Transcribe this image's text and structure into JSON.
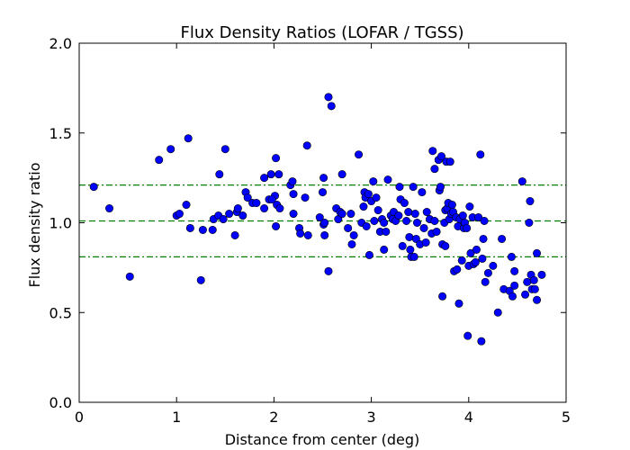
{
  "chart_data": {
    "type": "scatter",
    "title": "Flux Density Ratios (LOFAR / TGSS)",
    "xlabel": "Distance from center (deg)",
    "ylabel": "Flux density ratio",
    "xlim": [
      0,
      5
    ],
    "ylim": [
      0,
      2.0
    ],
    "xticks": [
      0,
      1,
      2,
      3,
      4,
      5
    ],
    "xtick_labels": [
      "0",
      "1",
      "2",
      "3",
      "4",
      "5"
    ],
    "yticks": [
      0,
      0.5,
      1.0,
      1.5,
      2.0
    ],
    "ytick_labels": [
      "0.0",
      "0.5",
      "1.0",
      "1.5",
      "2.0"
    ],
    "grid": false,
    "marker_color": "#0000ff",
    "line_color": "#008000",
    "reference_lines": [
      {
        "y": 1.01,
        "style": "dashed"
      },
      {
        "y": 1.21,
        "style": "dash-dot"
      },
      {
        "y": 0.81,
        "style": "dash-dot"
      }
    ],
    "points": [
      [
        0.15,
        1.2
      ],
      [
        0.31,
        1.08
      ],
      [
        0.52,
        0.7
      ],
      [
        0.82,
        1.35
      ],
      [
        0.94,
        1.41
      ],
      [
        1.0,
        1.04
      ],
      [
        1.03,
        1.05
      ],
      [
        1.1,
        1.1
      ],
      [
        1.12,
        1.47
      ],
      [
        1.14,
        0.97
      ],
      [
        1.25,
        0.68
      ],
      [
        1.27,
        0.96
      ],
      [
        1.37,
        0.96
      ],
      [
        1.38,
        1.02
      ],
      [
        1.43,
        1.04
      ],
      [
        1.44,
        1.27
      ],
      [
        1.48,
        1.02
      ],
      [
        1.5,
        1.41
      ],
      [
        1.54,
        1.05
      ],
      [
        1.6,
        0.93
      ],
      [
        1.62,
        1.06
      ],
      [
        1.63,
        1.08
      ],
      [
        1.68,
        1.04
      ],
      [
        1.71,
        1.17
      ],
      [
        1.73,
        1.14
      ],
      [
        1.78,
        1.11
      ],
      [
        1.82,
        1.11
      ],
      [
        1.9,
        1.25
      ],
      [
        1.9,
        1.08
      ],
      [
        1.95,
        1.13
      ],
      [
        1.97,
        1.27
      ],
      [
        2.02,
        1.36
      ],
      [
        2.02,
        0.98
      ],
      [
        2.05,
        1.27
      ],
      [
        2.01,
        1.15
      ],
      [
        2.03,
        1.1
      ],
      [
        1.98,
        1.13
      ],
      [
        2.06,
        1.08
      ],
      [
        2.17,
        1.21
      ],
      [
        2.19,
        1.23
      ],
      [
        2.2,
        1.16
      ],
      [
        2.2,
        1.05
      ],
      [
        2.26,
        0.97
      ],
      [
        2.27,
        0.94
      ],
      [
        2.32,
        1.14
      ],
      [
        2.34,
        1.43
      ],
      [
        2.35,
        0.93
      ],
      [
        2.47,
        1.03
      ],
      [
        2.5,
        1.17
      ],
      [
        2.51,
        1.25
      ],
      [
        2.51,
        0.99
      ],
      [
        2.52,
        0.93
      ],
      [
        2.52,
        1.0
      ],
      [
        2.56,
        1.7
      ],
      [
        2.56,
        0.73
      ],
      [
        2.59,
        1.65
      ],
      [
        2.64,
        1.08
      ],
      [
        2.66,
        1.02
      ],
      [
        2.68,
        1.06
      ],
      [
        2.7,
        1.27
      ],
      [
        2.7,
        1.05
      ],
      [
        2.76,
        0.97
      ],
      [
        2.79,
        1.05
      ],
      [
        2.8,
        0.88
      ],
      [
        2.82,
        0.93
      ],
      [
        2.87,
        1.38
      ],
      [
        2.9,
        1.0
      ],
      [
        2.92,
        1.09
      ],
      [
        2.93,
        1.17
      ],
      [
        2.94,
        1.14
      ],
      [
        2.95,
        0.98
      ],
      [
        2.97,
        1.16
      ],
      [
        2.98,
        0.82
      ],
      [
        3.0,
        1.12
      ],
      [
        3.02,
        1.23
      ],
      [
        3.03,
        1.01
      ],
      [
        3.05,
        1.14
      ],
      [
        3.07,
        1.07
      ],
      [
        3.09,
        0.95
      ],
      [
        3.11,
        1.02
      ],
      [
        3.13,
        0.85
      ],
      [
        3.13,
        1.0
      ],
      [
        3.15,
        0.95
      ],
      [
        3.17,
        1.24
      ],
      [
        3.2,
        1.04
      ],
      [
        3.22,
        1.02
      ],
      [
        3.23,
        1.06
      ],
      [
        3.25,
        1.01
      ],
      [
        3.28,
        1.04
      ],
      [
        3.29,
        1.2
      ],
      [
        3.3,
        1.13
      ],
      [
        3.32,
        0.87
      ],
      [
        3.34,
        1.11
      ],
      [
        3.36,
        1.01
      ],
      [
        3.38,
        1.06
      ],
      [
        3.39,
        0.92
      ],
      [
        3.4,
        0.85
      ],
      [
        3.41,
        0.81
      ],
      [
        3.43,
        1.2
      ],
      [
        3.44,
        0.81
      ],
      [
        3.45,
        1.05
      ],
      [
        3.46,
        0.91
      ],
      [
        3.47,
        1.0
      ],
      [
        3.5,
        0.88
      ],
      [
        3.52,
        1.17
      ],
      [
        3.54,
        0.97
      ],
      [
        3.56,
        0.89
      ],
      [
        3.57,
        1.06
      ],
      [
        3.6,
        1.02
      ],
      [
        3.62,
        0.94
      ],
      [
        3.63,
        1.4
      ],
      [
        3.65,
        1.01
      ],
      [
        3.65,
        1.3
      ],
      [
        3.67,
        0.95
      ],
      [
        3.69,
        1.35
      ],
      [
        3.7,
        1.18
      ],
      [
        3.71,
        1.2
      ],
      [
        3.72,
        1.37
      ],
      [
        3.73,
        0.88
      ],
      [
        3.73,
        0.59
      ],
      [
        3.75,
        1.0
      ],
      [
        3.76,
        1.07
      ],
      [
        3.76,
        0.87
      ],
      [
        3.77,
        1.34
      ],
      [
        3.78,
        1.08
      ],
      [
        3.79,
        1.11
      ],
      [
        3.8,
        1.02
      ],
      [
        3.81,
        1.34
      ],
      [
        3.82,
        1.05
      ],
      [
        3.83,
        1.1
      ],
      [
        3.84,
        1.06
      ],
      [
        3.85,
        0.73
      ],
      [
        3.87,
        1.03
      ],
      [
        3.88,
        0.74
      ],
      [
        3.89,
        0.98
      ],
      [
        3.9,
        0.55
      ],
      [
        3.91,
        1.02
      ],
      [
        3.93,
        0.79
      ],
      [
        3.94,
        1.04
      ],
      [
        3.95,
        0.97
      ],
      [
        3.96,
        1.0
      ],
      [
        3.98,
        0.97
      ],
      [
        3.99,
        0.37
      ],
      [
        4.0,
        0.76
      ],
      [
        4.01,
        1.09
      ],
      [
        4.02,
        0.83
      ],
      [
        4.04,
        1.03
      ],
      [
        4.05,
        0.77
      ],
      [
        4.07,
        0.78
      ],
      [
        4.08,
        0.85
      ],
      [
        4.1,
        1.03
      ],
      [
        4.12,
        1.38
      ],
      [
        4.13,
        0.34
      ],
      [
        4.14,
        0.8
      ],
      [
        4.15,
        0.91
      ],
      [
        4.16,
        1.01
      ],
      [
        4.17,
        0.67
      ],
      [
        4.2,
        0.72
      ],
      [
        4.25,
        0.76
      ],
      [
        4.3,
        0.5
      ],
      [
        4.34,
        0.91
      ],
      [
        4.36,
        0.63
      ],
      [
        4.42,
        0.62
      ],
      [
        4.44,
        0.81
      ],
      [
        4.45,
        0.59
      ],
      [
        4.47,
        0.65
      ],
      [
        4.47,
        0.73
      ],
      [
        4.55,
        1.23
      ],
      [
        4.58,
        0.6
      ],
      [
        4.6,
        0.67
      ],
      [
        4.62,
        1.0
      ],
      [
        4.63,
        1.12
      ],
      [
        4.64,
        0.71
      ],
      [
        4.65,
        0.63
      ],
      [
        4.67,
        0.68
      ],
      [
        4.68,
        0.63
      ],
      [
        4.7,
        0.57
      ],
      [
        4.7,
        0.83
      ],
      [
        4.75,
        0.71
      ]
    ]
  }
}
